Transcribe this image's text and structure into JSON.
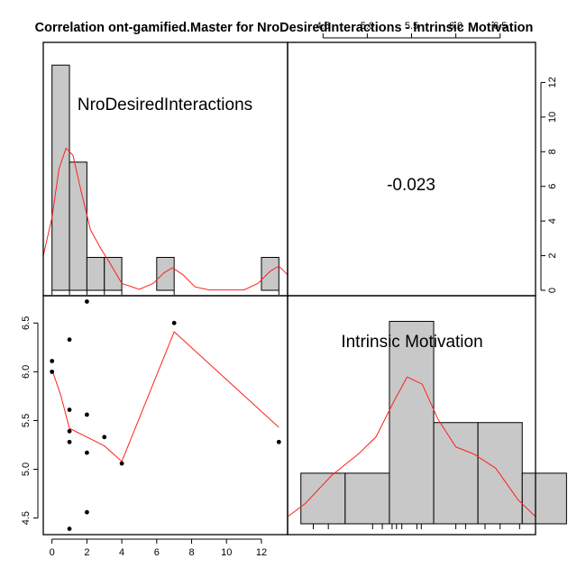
{
  "chart_data": {
    "type": "scatter",
    "title": "Correlation ont-gamified.Master for NroDesiredInteractions - Intrinsic Motivation",
    "variables": [
      "NroDesiredInteractions",
      "Intrinsic Motivation"
    ],
    "correlation": "-0.023",
    "x_label_name": "NroDesiredInteractions",
    "y_label_name": "Intrinsic Motivation",
    "xlim": [
      -0.5,
      13.5
    ],
    "ylim": [
      4.33,
      6.78
    ],
    "x_ticks": [
      "0",
      "2",
      "4",
      "6",
      "8",
      "10",
      "12"
    ],
    "y_ticks": [
      "4.5",
      "5.0",
      "5.5",
      "6.0",
      "6.5"
    ],
    "top_ticks": [
      "4.5",
      "5.0",
      "5.5",
      "6.0",
      "6.5"
    ],
    "right_ticks": [
      "0",
      "2",
      "4",
      "6",
      "8",
      "10",
      "12"
    ],
    "points": [
      {
        "x": 0,
        "y": 6.0
      },
      {
        "x": 0,
        "y": 6.11
      },
      {
        "x": 1,
        "y": 6.33
      },
      {
        "x": 1,
        "y": 5.61
      },
      {
        "x": 1,
        "y": 5.39
      },
      {
        "x": 1,
        "y": 5.28
      },
      {
        "x": 1,
        "y": 4.39
      },
      {
        "x": 2,
        "y": 6.72
      },
      {
        "x": 2,
        "y": 5.56
      },
      {
        "x": 2,
        "y": 5.17
      },
      {
        "x": 2,
        "y": 4.56
      },
      {
        "x": 3,
        "y": 5.33
      },
      {
        "x": 4,
        "y": 5.06
      },
      {
        "x": 7,
        "y": 6.5
      },
      {
        "x": 13,
        "y": 5.28
      }
    ],
    "loess": [
      {
        "x": 0,
        "y": 6.02
      },
      {
        "x": 0.5,
        "y": 5.76
      },
      {
        "x": 1,
        "y": 5.42
      },
      {
        "x": 2,
        "y": 5.33
      },
      {
        "x": 3,
        "y": 5.24
      },
      {
        "x": 4,
        "y": 5.08
      },
      {
        "x": 7,
        "y": 6.41
      },
      {
        "x": 13,
        "y": 5.43
      }
    ],
    "hist_x": {
      "bin_width": 1,
      "bins": [
        {
          "from": 0,
          "to": 1,
          "density": 13
        },
        {
          "from": 1,
          "to": 2,
          "density": 7.4
        },
        {
          "from": 2,
          "to": 3,
          "density": 1.9
        },
        {
          "from": 3,
          "to": 4,
          "density": 1.9
        },
        {
          "from": 6,
          "to": 7,
          "density": 1.9
        },
        {
          "from": 12,
          "to": 13,
          "density": 1.9
        }
      ],
      "density_curve": [
        {
          "x": -0.5,
          "y": 2.0
        },
        {
          "x": 0,
          "y": 4.2
        },
        {
          "x": 0.4,
          "y": 7.0
        },
        {
          "x": 0.8,
          "y": 8.2
        },
        {
          "x": 1.2,
          "y": 7.8
        },
        {
          "x": 1.6,
          "y": 6.0
        },
        {
          "x": 2.2,
          "y": 3.5
        },
        {
          "x": 2.8,
          "y": 2.4
        },
        {
          "x": 3.3,
          "y": 1.6
        },
        {
          "x": 4.0,
          "y": 0.4
        },
        {
          "x": 5.0,
          "y": 0.05
        },
        {
          "x": 5.8,
          "y": 0.4
        },
        {
          "x": 6.4,
          "y": 1.0
        },
        {
          "x": 6.9,
          "y": 1.3
        },
        {
          "x": 7.5,
          "y": 0.9
        },
        {
          "x": 8.2,
          "y": 0.2
        },
        {
          "x": 9.0,
          "y": 0.02
        },
        {
          "x": 11.0,
          "y": 0.02
        },
        {
          "x": 11.8,
          "y": 0.4
        },
        {
          "x": 12.5,
          "y": 1.1
        },
        {
          "x": 13.0,
          "y": 1.4
        },
        {
          "x": 13.5,
          "y": 0.9
        }
      ],
      "rug": [
        0,
        1,
        2,
        3,
        4,
        7,
        13
      ]
    },
    "hist_y": {
      "bins": [
        {
          "from": 4.25,
          "to": 4.75,
          "height": 0.5
        },
        {
          "from": 4.75,
          "to": 5.25,
          "height": 0.5
        },
        {
          "from": 5.25,
          "to": 5.75,
          "height": 2.0
        },
        {
          "from": 5.75,
          "to": 6.25,
          "height": 1.0
        },
        {
          "from": 6.25,
          "to": 6.75,
          "height": 1.0
        },
        {
          "from": 6.75,
          "to": 7.25,
          "height": 0.5
        }
      ],
      "density_curve": [
        {
          "x": 4.1,
          "y": 0.07
        },
        {
          "x": 4.3,
          "y": 0.2
        },
        {
          "x": 4.6,
          "y": 0.48
        },
        {
          "x": 4.9,
          "y": 0.69
        },
        {
          "x": 5.1,
          "y": 0.86
        },
        {
          "x": 5.3,
          "y": 1.21
        },
        {
          "x": 5.45,
          "y": 1.45
        },
        {
          "x": 5.62,
          "y": 1.38
        },
        {
          "x": 5.8,
          "y": 1.03
        },
        {
          "x": 6.0,
          "y": 0.76
        },
        {
          "x": 6.2,
          "y": 0.69
        },
        {
          "x": 6.45,
          "y": 0.55
        },
        {
          "x": 6.7,
          "y": 0.24
        },
        {
          "x": 6.9,
          "y": 0.07
        }
      ],
      "rug": [
        4.39,
        4.56,
        5.06,
        5.17,
        5.28,
        5.33,
        5.39,
        5.56,
        5.61,
        6.0,
        6.11,
        6.33,
        6.5,
        6.72
      ]
    }
  }
}
